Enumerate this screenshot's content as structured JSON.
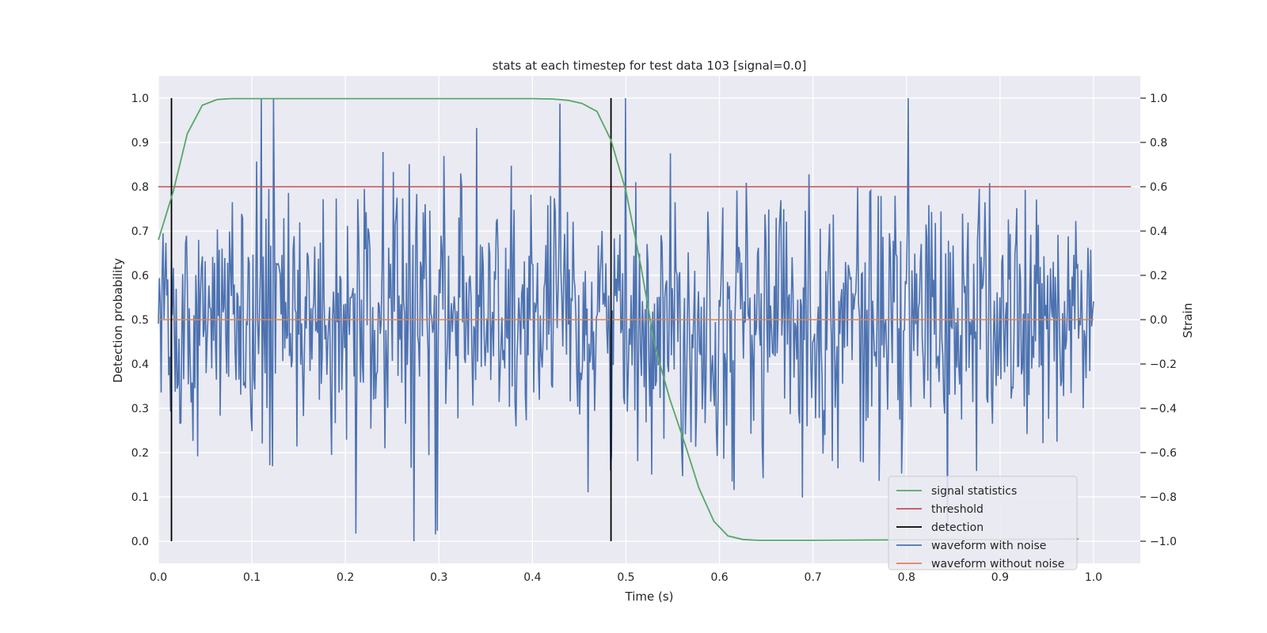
{
  "chart_data": {
    "type": "line",
    "title": "stats at each timestep for test data 103 [signal=0.0]",
    "xlabel": "Time (s)",
    "ylabel_left": "Detection probability",
    "ylabel_right": "Strain",
    "xlim": [
      0.0,
      1.05
    ],
    "ylim_left": [
      -0.05,
      1.05
    ],
    "ylim_right": [
      -1.1,
      1.1
    ],
    "x_ticks": [
      "0.0",
      "0.1",
      "0.2",
      "0.3",
      "0.4",
      "0.5",
      "0.6",
      "0.7",
      "0.8",
      "0.9",
      "1.0"
    ],
    "y_ticks_left": [
      "0.0",
      "0.1",
      "0.2",
      "0.3",
      "0.4",
      "0.5",
      "0.6",
      "0.7",
      "0.8",
      "0.9",
      "1.0"
    ],
    "y_ticks_right": [
      "−1.0",
      "−0.8",
      "−0.6",
      "−0.4",
      "−0.2",
      "0.0",
      "0.2",
      "0.4",
      "0.6",
      "0.8",
      "1.0"
    ],
    "grid": true,
    "legend_position": "lower-right",
    "series": [
      {
        "name": "signal statistics",
        "axis": "left",
        "color": "#55a868",
        "x": [
          0.0,
          0.016,
          0.031,
          0.047,
          0.063,
          0.078,
          0.094,
          0.11,
          0.2,
          0.3,
          0.4,
          0.422,
          0.438,
          0.453,
          0.469,
          0.484,
          0.5,
          0.516,
          0.531,
          0.547,
          0.563,
          0.578,
          0.594,
          0.609,
          0.625,
          0.641,
          0.7,
          0.8,
          0.9,
          0.984
        ],
        "values": [
          0.68,
          0.79,
          0.92,
          0.984,
          0.997,
          0.999,
          0.999,
          0.999,
          0.999,
          0.999,
          0.999,
          0.998,
          0.995,
          0.988,
          0.97,
          0.905,
          0.79,
          0.62,
          0.44,
          0.32,
          0.22,
          0.12,
          0.045,
          0.012,
          0.004,
          0.002,
          0.002,
          0.003,
          0.004,
          0.005
        ]
      },
      {
        "name": "threshold",
        "axis": "left",
        "color": "#c44e52",
        "x": [
          0.0,
          1.04
        ],
        "values": [
          0.8,
          0.8
        ]
      },
      {
        "name": "detection",
        "axis": "left",
        "color": "#000000",
        "type": "vlines",
        "x": [
          0.014,
          0.484
        ],
        "y_range": [
          0.0,
          1.0
        ]
      },
      {
        "name": "waveform with noise",
        "axis": "right",
        "color": "#4c72b0",
        "x_range": [
          0.0,
          1.0
        ],
        "n_points": 1000,
        "min": -1.0,
        "max": 1.0,
        "std": 0.3
      },
      {
        "name": "waveform without noise",
        "axis": "right",
        "color": "#dd8452",
        "x": [
          0.0,
          1.0
        ],
        "values": [
          0.0,
          0.0
        ]
      }
    ]
  }
}
